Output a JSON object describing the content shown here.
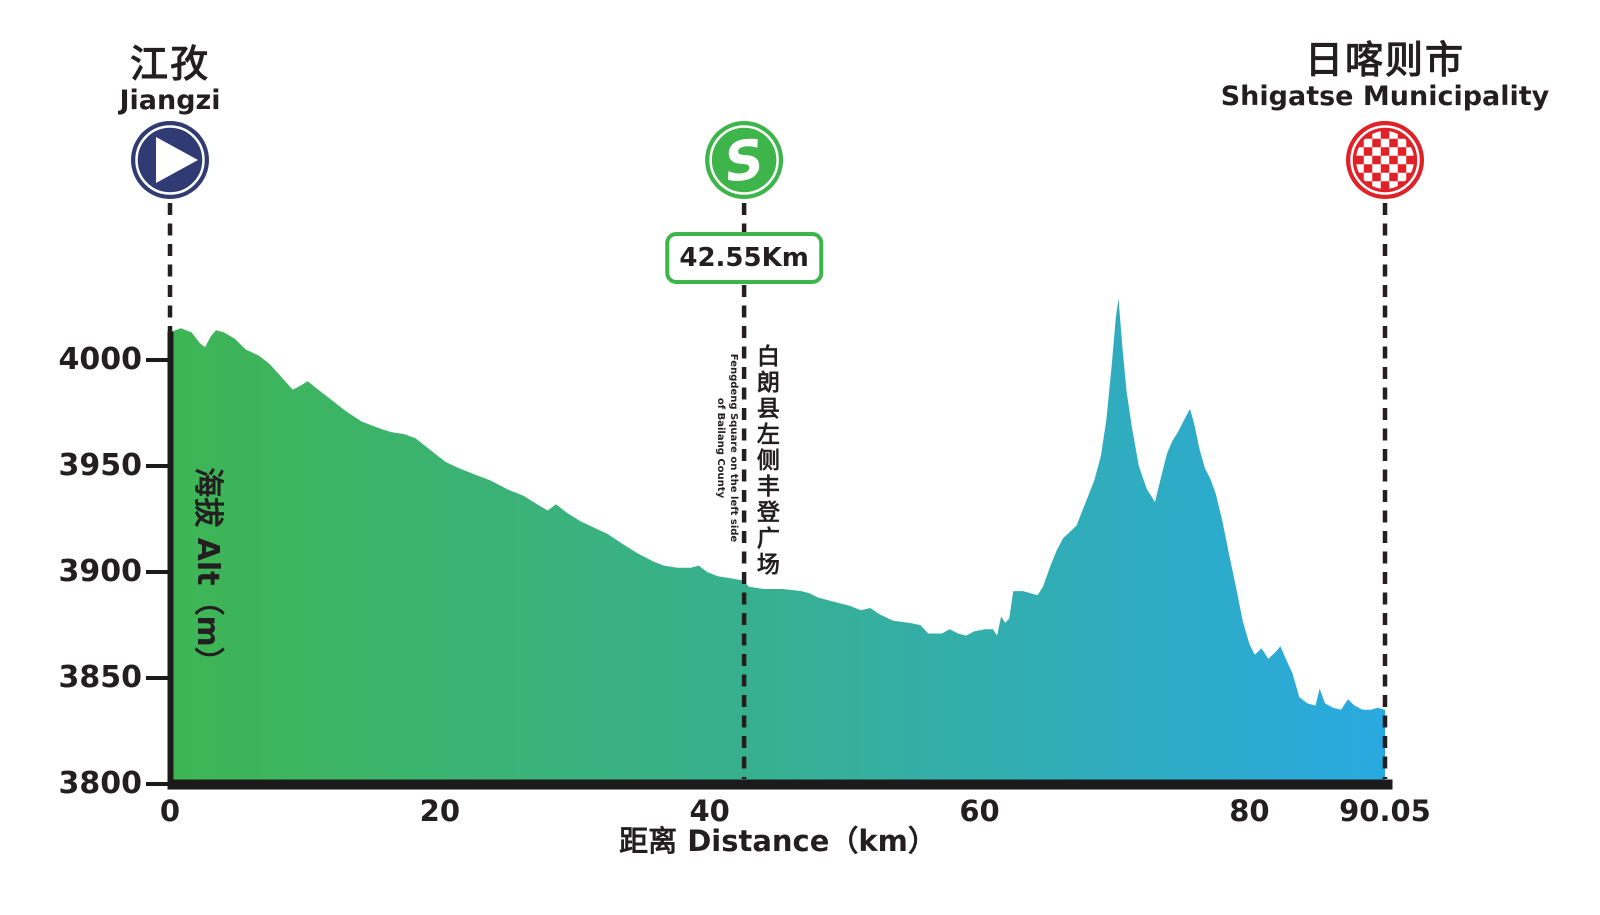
{
  "colors": {
    "start_navy": "#2f3b72",
    "sprint_green": "#3db54a",
    "finish_red": "#e02127",
    "text_black": "#231f20",
    "gradient_left_green": "#3eb553",
    "gradient_mid_teal": "#37b093",
    "gradient_right_blue": "#29a9e1"
  },
  "markers": {
    "start": {
      "name_zh": "江孜",
      "name_en": "Jiangzi",
      "km": 0,
      "icon": "play-icon"
    },
    "sprint": {
      "label": "42.55Km",
      "km": 42.55,
      "icon": "sprint-s-icon",
      "note_zh": "白朗县左侧丰登广场",
      "note_en_line1": "Fengdeng Square on the left side",
      "note_en_line2": "of Bailang County"
    },
    "finish": {
      "name_zh": "日喀则市",
      "name_en": "Shigatse Municipality",
      "km": 90.05,
      "icon": "checkered-flag-icon"
    }
  },
  "chart_data": {
    "type": "area",
    "title": "",
    "x_label": "距离 Distance（km）",
    "y_label": "海拔 Alt（m）",
    "x_range": [
      0,
      90.05
    ],
    "y_range": [
      3800,
      4040
    ],
    "grid": false,
    "y_ticks": [
      4000,
      3950,
      3900,
      3850,
      3800
    ],
    "x_ticks": [
      {
        "label": "0",
        "km": 0
      },
      {
        "label": "20",
        "km": 20
      },
      {
        "label": "40",
        "km": 40
      },
      {
        "label": "60",
        "km": 60
      },
      {
        "label": "80",
        "km": 80
      },
      {
        "label": "90.05",
        "km": 90.05
      }
    ],
    "start_elevation_m": 4013,
    "max_elevation_m": 4029,
    "finish_elevation_m": 3835,
    "profile": [
      [
        0,
        4013
      ],
      [
        0.8,
        4015
      ],
      [
        1.6,
        4013
      ],
      [
        2.2,
        4008
      ],
      [
        2.6,
        4006
      ],
      [
        3.0,
        4011
      ],
      [
        3.4,
        4014
      ],
      [
        4.0,
        4013
      ],
      [
        4.8,
        4010
      ],
      [
        5.6,
        4005
      ],
      [
        6.6,
        4002
      ],
      [
        7.4,
        3998
      ],
      [
        8.4,
        3991
      ],
      [
        9.1,
        3986
      ],
      [
        9.7,
        3988
      ],
      [
        10.2,
        3990
      ],
      [
        11.0,
        3986
      ],
      [
        12.0,
        3981
      ],
      [
        13.0,
        3976
      ],
      [
        14.2,
        3971
      ],
      [
        15.4,
        3968
      ],
      [
        16.4,
        3966
      ],
      [
        17.4,
        3965
      ],
      [
        18.2,
        3963
      ],
      [
        19.2,
        3958
      ],
      [
        20.4,
        3952
      ],
      [
        21.4,
        3949
      ],
      [
        22.6,
        3946
      ],
      [
        23.8,
        3943
      ],
      [
        25.0,
        3939
      ],
      [
        26.2,
        3936
      ],
      [
        27.2,
        3932
      ],
      [
        28.0,
        3929
      ],
      [
        28.6,
        3932
      ],
      [
        29.4,
        3928
      ],
      [
        30.4,
        3924
      ],
      [
        31.4,
        3921
      ],
      [
        32.4,
        3918
      ],
      [
        33.6,
        3913
      ],
      [
        34.6,
        3909
      ],
      [
        35.8,
        3905
      ],
      [
        36.6,
        3903
      ],
      [
        37.6,
        3902
      ],
      [
        38.6,
        3902
      ],
      [
        39.2,
        3903
      ],
      [
        39.8,
        3900
      ],
      [
        40.6,
        3898
      ],
      [
        41.6,
        3897
      ],
      [
        42.5,
        3896
      ],
      [
        42.9,
        3893
      ],
      [
        44.0,
        3892
      ],
      [
        45.4,
        3892
      ],
      [
        46.8,
        3891
      ],
      [
        47.4,
        3890
      ],
      [
        48.0,
        3888
      ],
      [
        49.2,
        3886
      ],
      [
        50.4,
        3884
      ],
      [
        51.2,
        3882
      ],
      [
        51.9,
        3883
      ],
      [
        52.6,
        3880
      ],
      [
        53.6,
        3877
      ],
      [
        54.8,
        3876
      ],
      [
        55.6,
        3875
      ],
      [
        56.2,
        3871
      ],
      [
        57.2,
        3871
      ],
      [
        57.8,
        3873
      ],
      [
        58.4,
        3871
      ],
      [
        59.0,
        3870
      ],
      [
        59.6,
        3872
      ],
      [
        60.4,
        3873
      ],
      [
        61.0,
        3873
      ],
      [
        61.3,
        3870
      ],
      [
        61.6,
        3879
      ],
      [
        61.9,
        3876
      ],
      [
        62.2,
        3878
      ],
      [
        62.5,
        3891
      ],
      [
        63.2,
        3891
      ],
      [
        63.8,
        3890
      ],
      [
        64.3,
        3889
      ],
      [
        64.7,
        3893
      ],
      [
        65.2,
        3902
      ],
      [
        65.7,
        3910
      ],
      [
        66.2,
        3916
      ],
      [
        66.7,
        3919
      ],
      [
        67.2,
        3922
      ],
      [
        67.5,
        3927
      ],
      [
        68.0,
        3935
      ],
      [
        68.5,
        3943
      ],
      [
        69.0,
        3955
      ],
      [
        69.4,
        3972
      ],
      [
        69.8,
        3998
      ],
      [
        70.1,
        4020
      ],
      [
        70.3,
        4029
      ],
      [
        70.6,
        4005
      ],
      [
        70.9,
        3985
      ],
      [
        71.3,
        3968
      ],
      [
        71.8,
        3950
      ],
      [
        72.4,
        3939
      ],
      [
        73.0,
        3933
      ],
      [
        73.5,
        3946
      ],
      [
        73.9,
        3956
      ],
      [
        74.3,
        3962
      ],
      [
        74.7,
        3966
      ],
      [
        75.1,
        3971
      ],
      [
        75.6,
        3977
      ],
      [
        75.9,
        3970
      ],
      [
        76.3,
        3958
      ],
      [
        76.7,
        3949
      ],
      [
        77.1,
        3944
      ],
      [
        77.5,
        3937
      ],
      [
        78.0,
        3924
      ],
      [
        78.5,
        3908
      ],
      [
        79.0,
        3893
      ],
      [
        79.5,
        3877
      ],
      [
        80.0,
        3866
      ],
      [
        80.4,
        3861
      ],
      [
        80.9,
        3864
      ],
      [
        81.4,
        3859
      ],
      [
        81.9,
        3862
      ],
      [
        82.3,
        3865
      ],
      [
        82.7,
        3859
      ],
      [
        83.2,
        3852
      ],
      [
        83.7,
        3841
      ],
      [
        84.3,
        3838
      ],
      [
        84.9,
        3837
      ],
      [
        85.2,
        3845
      ],
      [
        85.6,
        3838
      ],
      [
        86.2,
        3836
      ],
      [
        86.8,
        3835
      ],
      [
        87.3,
        3840
      ],
      [
        87.8,
        3837
      ],
      [
        88.4,
        3835
      ],
      [
        89.0,
        3835
      ],
      [
        89.5,
        3836
      ],
      [
        90.05,
        3835
      ]
    ]
  }
}
